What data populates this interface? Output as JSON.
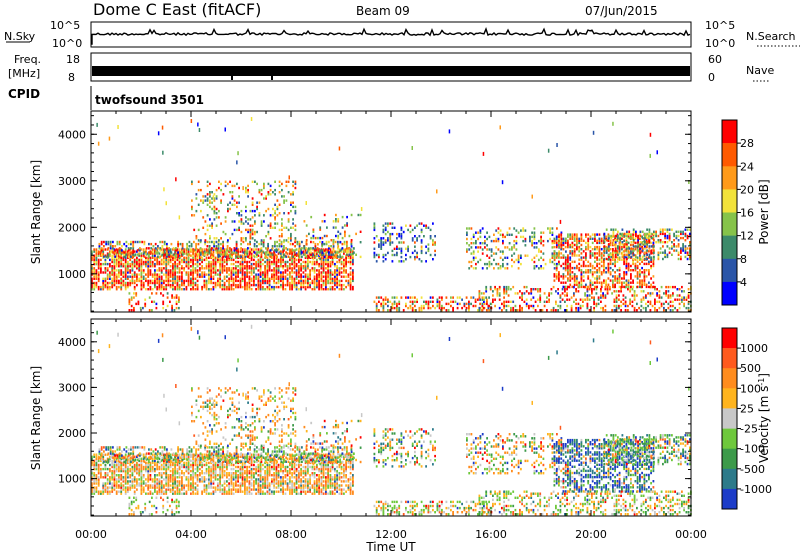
{
  "header": {
    "title": "Dome C East (fitACF)",
    "beam": "Beam 09",
    "date": "07/Jun/2015"
  },
  "top_panels": {
    "nsky_label": "N.Sky",
    "nsky_ticks": [
      "10^5",
      "10^0"
    ],
    "nsearch_label": "N.Search",
    "nsearch_ticks": [
      "10^5",
      "10^0"
    ],
    "freq_label": "Freq.",
    "freq_unit": "[MHz]",
    "freq_ticks": [
      "18",
      "8"
    ],
    "nave_label": "Nave",
    "nave_ticks": [
      "60",
      "0"
    ],
    "cpid_label": "CPID",
    "cpid_value": "twofsound 3501"
  },
  "chart_data": [
    {
      "type": "heatmap",
      "panel": "power",
      "ylabel": "Slant Range [km]",
      "ylim": [
        180,
        4500
      ],
      "yticks": [
        "1000",
        "2000",
        "3000",
        "4000"
      ],
      "colorbar_label": "Power [dB]",
      "colorbar_ticks": [
        "4",
        "8",
        "12",
        "16",
        "20",
        "24",
        "28"
      ],
      "colorbar_colors": [
        "#0000ff",
        "#2a55a8",
        "#3c8a6a",
        "#86c34a",
        "#f2e23a",
        "#ff9a1a",
        "#ff5a00",
        "#ff0000"
      ],
      "x_range_hours": [
        0,
        24
      ]
    },
    {
      "type": "heatmap",
      "panel": "velocity",
      "ylabel": "Slant Range [km]",
      "ylim": [
        180,
        4500
      ],
      "yticks": [
        "1000",
        "2000",
        "3000",
        "4000"
      ],
      "colorbar_label": "Velocity [m s",
      "colorbar_sup": "-1",
      "colorbar_tail": "]",
      "colorbar_ticks": [
        "1000",
        "500",
        "100",
        "25",
        "-25",
        "-100",
        "-500",
        "-1000"
      ],
      "colorbar_colors": [
        "#1c3cc8",
        "#2c7a8a",
        "#3c9a4a",
        "#6ec83c",
        "#c8c8c8",
        "#ffb41e",
        "#ff8c1e",
        "#ff5a1e",
        "#ff0000"
      ],
      "x_range_hours": [
        0,
        24
      ]
    }
  ],
  "time_axis": {
    "ticks": [
      "00:00",
      "04:00",
      "08:00",
      "12:00",
      "16:00",
      "20:00",
      "00:00"
    ],
    "label": "Time UT"
  }
}
